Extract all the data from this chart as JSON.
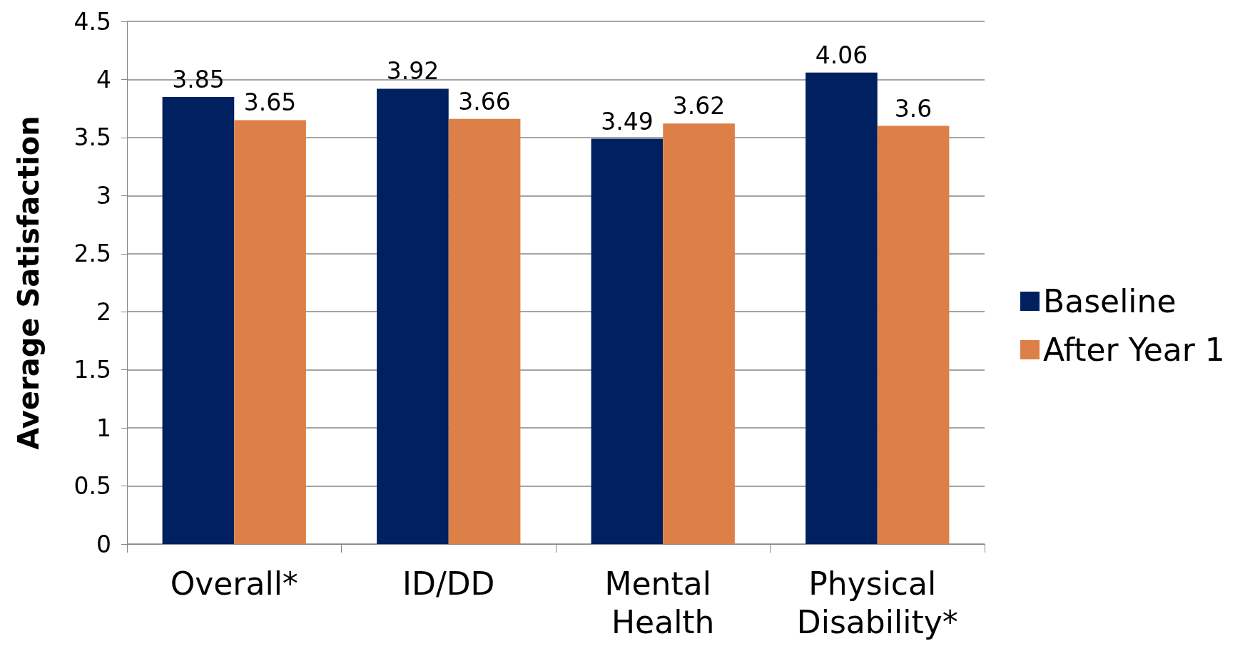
{
  "chart_data": {
    "type": "bar",
    "ylabel": "Average Satisfaction",
    "categories": [
      "Overall*",
      "ID/DD",
      "Mental Health",
      "Physical Disability*"
    ],
    "series": [
      {
        "name": "Baseline",
        "color": "#002060",
        "values": [
          3.85,
          3.92,
          3.49,
          4.06
        ]
      },
      {
        "name": "After Year 1",
        "color": "#dd8047",
        "values": [
          3.65,
          3.66,
          3.62,
          3.6
        ]
      }
    ],
    "ylim": [
      0,
      4.5
    ],
    "yticks": [
      0,
      0.5,
      1,
      1.5,
      2,
      2.5,
      3,
      3.5,
      4,
      4.5
    ],
    "grid": "y",
    "legend": "right",
    "data_labels": true
  }
}
